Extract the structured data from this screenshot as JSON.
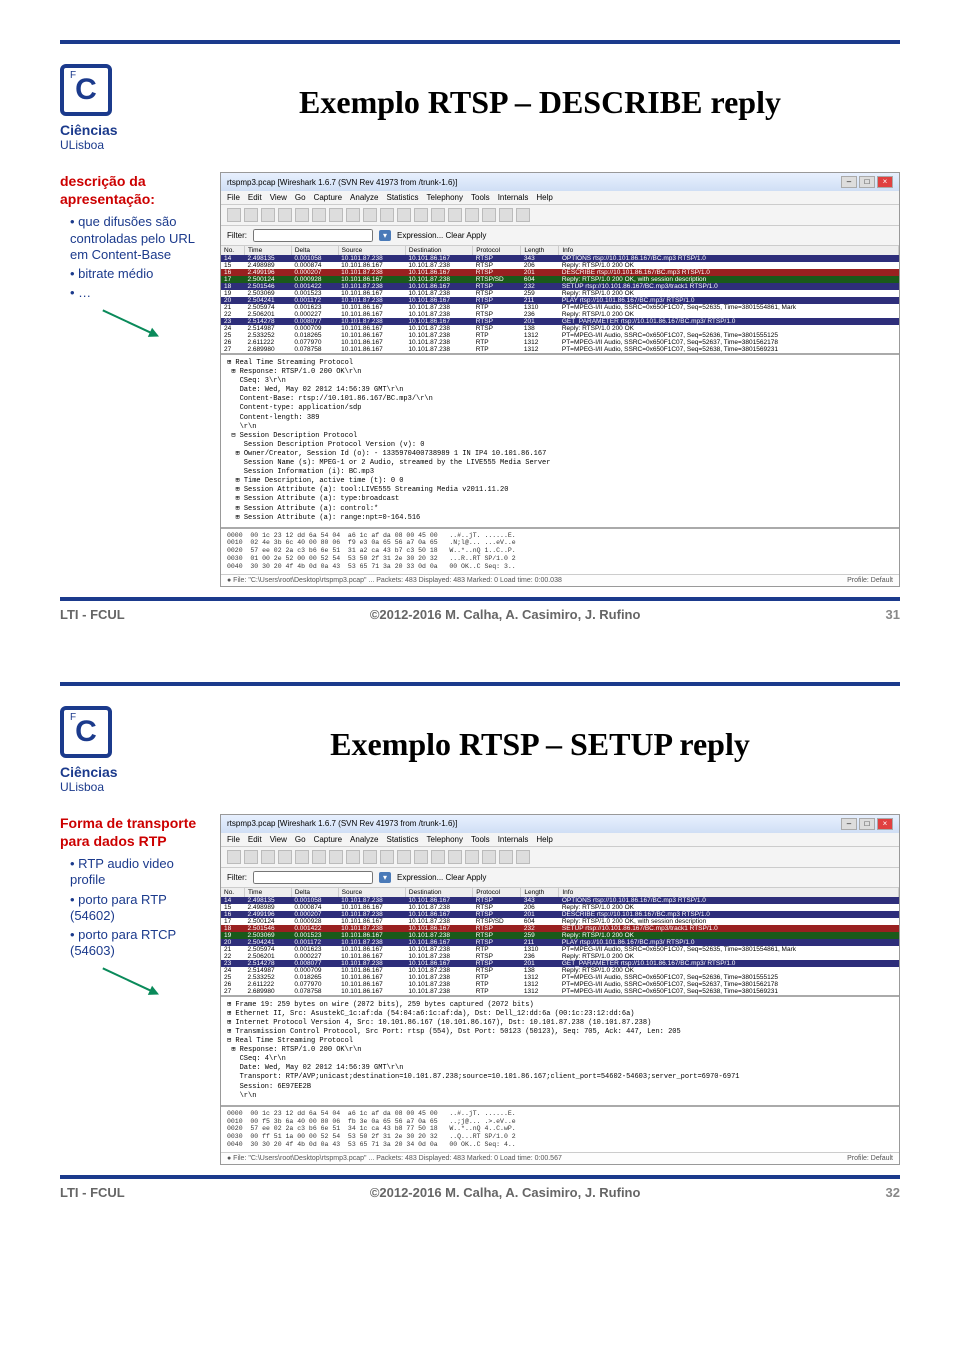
{
  "logo": {
    "letter": "C",
    "top": "Ciências",
    "bottom": "ULisboa"
  },
  "footer": {
    "left": "LTI - FCUL",
    "center": "©2012-2016 M. Calha, A. Casimiro, J. Rufino"
  },
  "slides": [
    {
      "title": "Exemplo RTSP – DESCRIBE reply",
      "page_number": "31",
      "side_heading": "descrição da apresentação:",
      "bullets": [
        "que difusões são controladas pelo URL em Content-Base",
        "bitrate médio",
        "…"
      ],
      "ws": {
        "title": "rtspmp3.pcap  [Wireshark 1.6.7  (SVN Rev 41973 from /trunk-1.6)]",
        "menu": [
          "File",
          "Edit",
          "View",
          "Go",
          "Capture",
          "Analyze",
          "Statistics",
          "Telephony",
          "Tools",
          "Internals",
          "Help"
        ],
        "filter_label": "Filter:",
        "expr": "Expression...  Clear  Apply",
        "columns": [
          "No.",
          "Time",
          "Delta",
          "Source",
          "Destination",
          "Protocol",
          "Length",
          "Info"
        ],
        "rows": [
          {
            "bg": "#2e2e7a",
            "fg": "#fff",
            "c": [
              "14",
              "2.498135",
              "0.001058",
              "10.101.87.238",
              "10.101.86.167",
              "RTSP",
              "343",
              "OPTIONS rtsp://10.101.86.167/BC.mp3 RTSP/1.0"
            ]
          },
          {
            "bg": "#fff",
            "fg": "#000",
            "c": [
              "15",
              "2.498989",
              "0.000874",
              "10.101.86.167",
              "10.101.87.238",
              "RTSP",
              "206",
              "Reply: RTSP/1.0 200 OK"
            ]
          },
          {
            "bg": "#992020",
            "fg": "#fff",
            "c": [
              "16",
              "2.499196",
              "0.000207",
              "10.101.87.238",
              "10.101.86.167",
              "RTSP",
              "201",
              "DESCRIBE rtsp://10.101.86.167/BC.mp3 RTSP/1.0"
            ]
          },
          {
            "bg": "#1a5a1a",
            "fg": "#fff",
            "c": [
              "17",
              "2.500124",
              "0.000928",
              "10.101.86.167",
              "10.101.87.238",
              "RTSP/SD",
              "604",
              "Reply: RTSP/1.0 200 OK, with session description"
            ]
          },
          {
            "bg": "#2e2e7a",
            "fg": "#fff",
            "c": [
              "18",
              "2.501546",
              "0.001422",
              "10.101.87.238",
              "10.101.86.167",
              "RTSP",
              "232",
              "SETUP rtsp://10.101.86.167/BC.mp3/track1 RTSP/1.0"
            ]
          },
          {
            "bg": "#fff",
            "fg": "#000",
            "c": [
              "19",
              "2.503069",
              "0.001523",
              "10.101.86.167",
              "10.101.87.238",
              "RTSP",
              "259",
              "Reply: RTSP/1.0 200 OK"
            ]
          },
          {
            "bg": "#2e2e7a",
            "fg": "#fff",
            "c": [
              "20",
              "2.504241",
              "0.001172",
              "10.101.87.238",
              "10.101.86.167",
              "RTSP",
              "211",
              "PLAY rtsp://10.101.86.167/BC.mp3/ RTSP/1.0"
            ]
          },
          {
            "bg": "#fff",
            "fg": "#000",
            "c": [
              "21",
              "2.505974",
              "0.001623",
              "10.101.86.167",
              "10.101.87.238",
              "RTP",
              "1310",
              "PT=MPEG-I/II Audio, SSRC=0x650F1C07, Seq=52635, Time=3801554861, Mark"
            ]
          },
          {
            "bg": "#fff",
            "fg": "#000",
            "c": [
              "22",
              "2.506201",
              "0.000227",
              "10.101.86.167",
              "10.101.87.238",
              "RTSP",
              "236",
              "Reply: RTSP/1.0 200 OK"
            ]
          },
          {
            "bg": "#2e2e7a",
            "fg": "#fff",
            "c": [
              "23",
              "2.514278",
              "0.008077",
              "10.101.87.238",
              "10.101.86.167",
              "RTSP",
              "201",
              "GET_PARAMETER rtsp://10.101.86.167/BC.mp3/ RTSP/1.0"
            ]
          },
          {
            "bg": "#fff",
            "fg": "#000",
            "c": [
              "24",
              "2.514987",
              "0.000709",
              "10.101.86.167",
              "10.101.87.238",
              "RTSP",
              "138",
              "Reply: RTSP/1.0 200 OK"
            ]
          },
          {
            "bg": "#fff",
            "fg": "#000",
            "c": [
              "25",
              "2.533252",
              "0.018265",
              "10.101.86.167",
              "10.101.87.238",
              "RTP",
              "1312",
              "PT=MPEG-I/II Audio, SSRC=0x650F1C07, Seq=52636, Time=3801555125"
            ]
          },
          {
            "bg": "#fff",
            "fg": "#000",
            "c": [
              "26",
              "2.611222",
              "0.077970",
              "10.101.86.167",
              "10.101.87.238",
              "RTP",
              "1312",
              "PT=MPEG-I/II Audio, SSRC=0x650F1C07, Seq=52637, Time=3801562178"
            ]
          },
          {
            "bg": "#fff",
            "fg": "#000",
            "c": [
              "27",
              "2.689980",
              "0.078758",
              "10.101.86.167",
              "10.101.87.238",
              "RTP",
              "1312",
              "PT=MPEG-I/II Audio, SSRC=0x650F1C07, Seq=52638, Time=3801569231"
            ]
          }
        ],
        "detail": [
          "⊞ Real Time Streaming Protocol",
          " ⊞ Response: RTSP/1.0 200 OK\\r\\n",
          "   CSeq: 3\\r\\n",
          "   Date: Wed, May 02 2012 14:56:39 GMT\\r\\n",
          "   Content-Base: rtsp://10.101.86.167/BC.mp3/\\r\\n",
          "   Content-type: application/sdp",
          "   Content-length: 389",
          "   \\r\\n",
          " ⊟ Session Description Protocol",
          "    Session Description Protocol Version (v): 0",
          "  ⊞ Owner/Creator, Session Id (o): - 1335970400738989 1 IN IP4 10.101.86.167",
          "    Session Name (s): MPEG-1 or 2 Audio, streamed by the LIVE555 Media Server",
          "    Session Information (i): BC.mp3",
          "  ⊞ Time Description, active time (t): 0 0",
          "  ⊞ Session Attribute (a): tool:LIVE555 Streaming Media v2011.11.20",
          "  ⊞ Session Attribute (a): type:broadcast",
          "  ⊞ Session Attribute (a): control:*",
          "  ⊞ Session Attribute (a): range:npt=0-164.516"
        ],
        "hex": [
          "0000  00 1c 23 12 dd 6a 54 04  a6 1c af da 08 00 45 00   ..#..jT. ......E.",
          "0010  02 4e 3b 6c 40 00 80 06  f9 e3 0a 65 56 a7 0a 65   .N;l@... ...eV..e",
          "0020  57 ee 02 2a c3 b6 6e 51  31 a2 ca 43 b7 c3 50 18   W..*..nQ 1..C..P.",
          "0030  01 00 2e 52 00 00 52 54  53 50 2f 31 2e 30 20 32   ...R..RT SP/1.0 2",
          "0040  30 30 20 4f 4b 0d 0a 43  53 65 71 3a 20 33 0d 0a   00 OK..C Seq: 3.."
        ],
        "status_left": "File: \"C:\\Users\\root\\Desktop\\rtspmp3.pcap\" ...  Packets: 483 Displayed: 483 Marked: 0 Load time: 0:00.038",
        "status_right": "Profile: Default"
      }
    },
    {
      "title": "Exemplo RTSP – SETUP reply",
      "page_number": "32",
      "side_heading": "Forma de transporte para dados RTP",
      "bullets": [
        "RTP audio video profile",
        "porto para RTP (54602)",
        "porto para RTCP (54603)"
      ],
      "ws": {
        "title": "rtspmp3.pcap  [Wireshark 1.6.7  (SVN Rev 41973 from /trunk-1.6)]",
        "menu": [
          "File",
          "Edit",
          "View",
          "Go",
          "Capture",
          "Analyze",
          "Statistics",
          "Telephony",
          "Tools",
          "Internals",
          "Help"
        ],
        "filter_label": "Filter:",
        "expr": "Expression...  Clear  Apply",
        "columns": [
          "No.",
          "Time",
          "Delta",
          "Source",
          "Destination",
          "Protocol",
          "Length",
          "Info"
        ],
        "rows": [
          {
            "bg": "#2e2e7a",
            "fg": "#fff",
            "c": [
              "14",
              "2.498135",
              "0.001058",
              "10.101.87.238",
              "10.101.86.167",
              "RTSP",
              "343",
              "OPTIONS rtsp://10.101.86.167/BC.mp3 RTSP/1.0"
            ]
          },
          {
            "bg": "#fff",
            "fg": "#000",
            "c": [
              "15",
              "2.498989",
              "0.000874",
              "10.101.86.167",
              "10.101.87.238",
              "RTSP",
              "206",
              "Reply: RTSP/1.0 200 OK"
            ]
          },
          {
            "bg": "#2e2e7a",
            "fg": "#fff",
            "c": [
              "16",
              "2.499196",
              "0.000207",
              "10.101.87.238",
              "10.101.86.167",
              "RTSP",
              "201",
              "DESCRIBE rtsp://10.101.86.167/BC.mp3 RTSP/1.0"
            ]
          },
          {
            "bg": "#fff",
            "fg": "#000",
            "c": [
              "17",
              "2.500124",
              "0.000928",
              "10.101.86.167",
              "10.101.87.238",
              "RTSP/SD",
              "604",
              "Reply: RTSP/1.0 200 OK, with session description"
            ]
          },
          {
            "bg": "#992020",
            "fg": "#fff",
            "c": [
              "18",
              "2.501546",
              "0.001422",
              "10.101.87.238",
              "10.101.86.167",
              "RTSP",
              "232",
              "SETUP rtsp://10.101.86.167/BC.mp3/track1 RTSP/1.0"
            ]
          },
          {
            "bg": "#1a5a1a",
            "fg": "#fff",
            "c": [
              "19",
              "2.503069",
              "0.001523",
              "10.101.86.167",
              "10.101.87.238",
              "RTSP",
              "259",
              "Reply: RTSP/1.0 200 OK"
            ]
          },
          {
            "bg": "#2e2e7a",
            "fg": "#fff",
            "c": [
              "20",
              "2.504241",
              "0.001172",
              "10.101.87.238",
              "10.101.86.167",
              "RTSP",
              "211",
              "PLAY rtsp://10.101.86.167/BC.mp3/ RTSP/1.0"
            ]
          },
          {
            "bg": "#fff",
            "fg": "#000",
            "c": [
              "21",
              "2.505974",
              "0.001623",
              "10.101.86.167",
              "10.101.87.238",
              "RTP",
              "1310",
              "PT=MPEG-I/II Audio, SSRC=0x650F1C07, Seq=52635, Time=3801554861, Mark"
            ]
          },
          {
            "bg": "#fff",
            "fg": "#000",
            "c": [
              "22",
              "2.506201",
              "0.000227",
              "10.101.86.167",
              "10.101.87.238",
              "RTSP",
              "236",
              "Reply: RTSP/1.0 200 OK"
            ]
          },
          {
            "bg": "#2e2e7a",
            "fg": "#fff",
            "c": [
              "23",
              "2.514278",
              "0.008077",
              "10.101.87.238",
              "10.101.86.167",
              "RTSP",
              "201",
              "GET_PARAMETER rtsp://10.101.86.167/BC.mp3/ RTSP/1.0"
            ]
          },
          {
            "bg": "#fff",
            "fg": "#000",
            "c": [
              "24",
              "2.514987",
              "0.000709",
              "10.101.86.167",
              "10.101.87.238",
              "RTSP",
              "138",
              "Reply: RTSP/1.0 200 OK"
            ]
          },
          {
            "bg": "#fff",
            "fg": "#000",
            "c": [
              "25",
              "2.533252",
              "0.018265",
              "10.101.86.167",
              "10.101.87.238",
              "RTP",
              "1312",
              "PT=MPEG-I/II Audio, SSRC=0x650F1C07, Seq=52636, Time=3801555125"
            ]
          },
          {
            "bg": "#fff",
            "fg": "#000",
            "c": [
              "26",
              "2.611222",
              "0.077970",
              "10.101.86.167",
              "10.101.87.238",
              "RTP",
              "1312",
              "PT=MPEG-I/II Audio, SSRC=0x650F1C07, Seq=52637, Time=3801562178"
            ]
          },
          {
            "bg": "#fff",
            "fg": "#000",
            "c": [
              "27",
              "2.689980",
              "0.078758",
              "10.101.86.167",
              "10.101.87.238",
              "RTP",
              "1312",
              "PT=MPEG-I/II Audio, SSRC=0x650F1C07, Seq=52638, Time=3801569231"
            ]
          }
        ],
        "detail": [
          "⊞ Frame 19: 259 bytes on wire (2072 bits), 259 bytes captured (2072 bits)",
          "⊞ Ethernet II, Src: AsustekC_1c:af:da (54:04:a6:1c:af:da), Dst: Dell_12:dd:6a (00:1c:23:12:dd:6a)",
          "⊞ Internet Protocol Version 4, Src: 10.101.86.167 (10.101.86.167), Dst: 10.101.87.238 (10.101.87.238)",
          "⊞ Transmission Control Protocol, Src Port: rtsp (554), Dst Port: 50123 (50123), Seq: 705, Ack: 447, Len: 205",
          "⊟ Real Time Streaming Protocol",
          " ⊞ Response: RTSP/1.0 200 OK\\r\\n",
          "   CSeq: 4\\r\\n",
          "   Date: Wed, May 02 2012 14:56:39 GMT\\r\\n",
          "   Transport: RTP/AVP;unicast;destination=10.101.87.238;source=10.101.86.167;client_port=54602-54603;server_port=6970-6971",
          "   Session: 6E97EE2B",
          "   \\r\\n"
        ],
        "hex": [
          "0000  00 1c 23 12 dd 6a 54 04  a6 1c af da 08 00 45 00   ..#..jT. ......E.",
          "0010  00 f5 3b 6a 40 00 80 06  fb 3e 0a 65 56 a7 0a 65   ..;j@... .>.eV..e",
          "0020  57 ee 02 2a c3 b6 6e 51  34 1c ca 43 b8 77 50 18   W..*..nQ 4..C.wP.",
          "0030  00 ff 51 1a 00 00 52 54  53 50 2f 31 2e 30 20 32   ..Q...RT SP/1.0 2",
          "0040  30 30 20 4f 4b 0d 0a 43  53 65 71 3a 20 34 0d 0a   00 OK..C Seq: 4.."
        ],
        "status_left": "File: \"C:\\Users\\root\\Desktop\\rtspmp3.pcap\" ...  Packets: 483 Displayed: 483 Marked: 0 Load time: 0:00.567",
        "status_right": "Profile: Default"
      }
    }
  ]
}
